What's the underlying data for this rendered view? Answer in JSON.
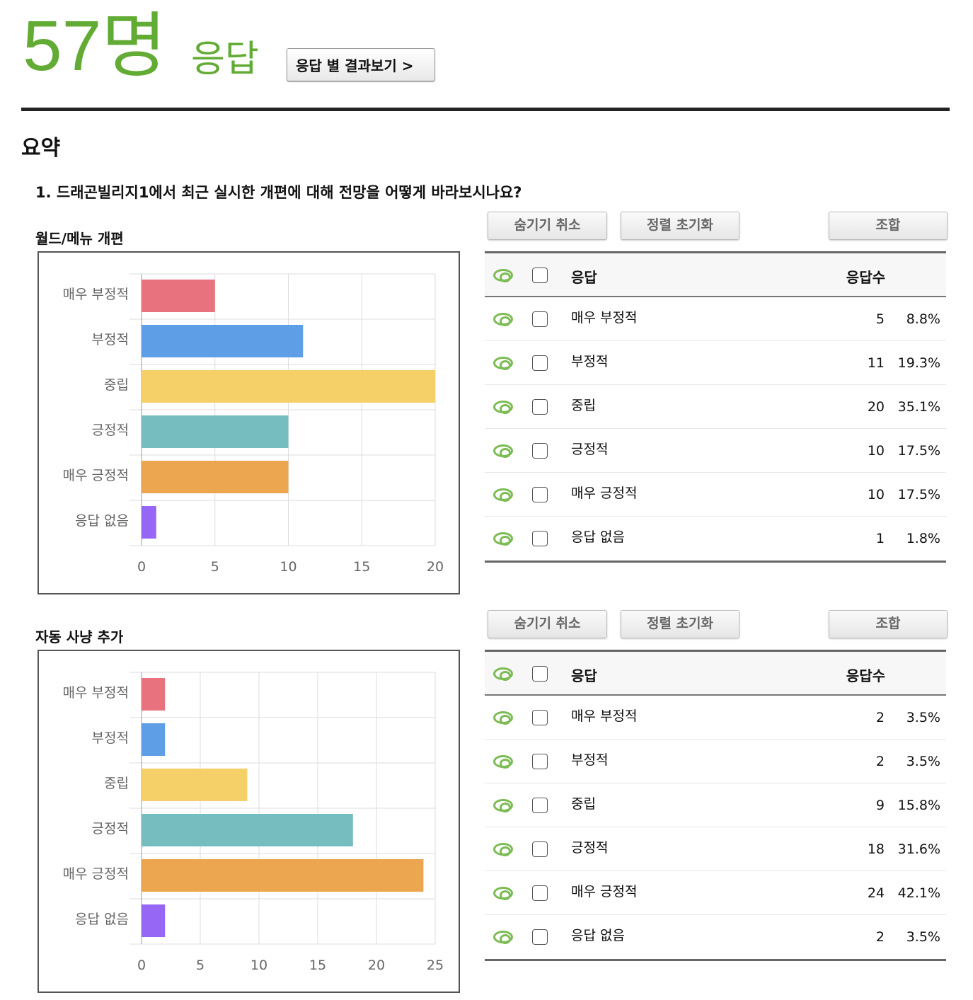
{
  "header": {
    "count": "57명",
    "suffix": "응답",
    "by_response_button": "응답 별 결과보기 >"
  },
  "summary_title": "요약",
  "question": "1. 드래곤빌리지1에서 최근 실시한 개편에 대해 전망을 어떻게 바라보시나요?",
  "buttons": {
    "unhide": "숨기기 취소",
    "reset_sort": "정렬 초기화",
    "combine": "조합"
  },
  "table_header": {
    "answer": "응답",
    "count": "응답수"
  },
  "colors": [
    "#e8737f",
    "#5e9ee6",
    "#f5cf68",
    "#76bdbf",
    "#eba64f",
    "#9666f5"
  ],
  "chart_data": [
    {
      "type": "bar",
      "orientation": "horizontal",
      "title": "월드/메뉴 개편",
      "categories": [
        "매우 부정적",
        "부정적",
        "중립",
        "긍정적",
        "매우 긍정적",
        "응답 없음"
      ],
      "values": [
        5,
        11,
        20,
        10,
        10,
        1
      ],
      "percents": [
        "8.8%",
        "19.3%",
        "35.1%",
        "17.5%",
        "17.5%",
        "1.8%"
      ],
      "xlim": [
        0,
        20
      ],
      "ticks": [
        0,
        5,
        10,
        15,
        20
      ],
      "grid": true
    },
    {
      "type": "bar",
      "orientation": "horizontal",
      "title": "자동 사냥 추가",
      "categories": [
        "매우 부정적",
        "부정적",
        "중립",
        "긍정적",
        "매우 긍정적",
        "응답 없음"
      ],
      "values": [
        2,
        2,
        9,
        18,
        24,
        2
      ],
      "percents": [
        "3.5%",
        "3.5%",
        "15.8%",
        "31.6%",
        "42.1%",
        "3.5%"
      ],
      "xlim": [
        0,
        25
      ],
      "ticks": [
        0,
        5,
        10,
        15,
        20,
        25
      ],
      "grid": true
    }
  ]
}
